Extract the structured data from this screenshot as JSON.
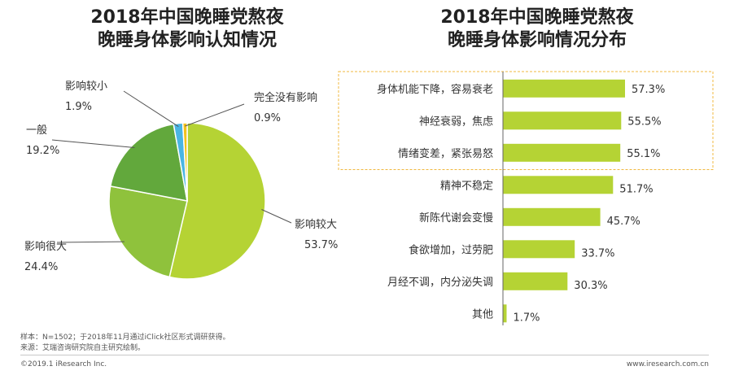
{
  "left_title": {
    "line1": "2018年中国晚睡党熬夜",
    "line2": "晚睡身体影响认知情况"
  },
  "right_title": {
    "line1": "2018年中国晚睡党熬夜",
    "line2": "晚睡身体影响情况分布"
  },
  "chart_data": [
    {
      "type": "pie",
      "title": "2018年中国晚睡党熬夜晚睡身体影响认知情况",
      "slices": [
        {
          "label": "影响较大",
          "value": 53.7,
          "display": "53.7%",
          "color": "#b5d334"
        },
        {
          "label": "影响很大",
          "value": 24.4,
          "display": "24.4%",
          "color": "#8fc23c"
        },
        {
          "label": "一般",
          "value": 19.2,
          "display": "19.2%",
          "color": "#62a83c"
        },
        {
          "label": "影响较小",
          "value": 1.9,
          "display": "1.9%",
          "color": "#4ab5e3"
        },
        {
          "label": "完全没有影响",
          "value": 0.9,
          "display": "0.9%",
          "color": "#f2c21d"
        }
      ]
    },
    {
      "type": "bar",
      "orientation": "horizontal",
      "title": "2018年中国晚睡党熬夜晚睡身体影响情况分布",
      "categories": [
        "身体机能下降，容易衰老",
        "神经衰弱，焦虑",
        "情绪变差，紧张易怒",
        "精神不稳定",
        "新陈代谢会变慢",
        "食欲增加，过劳肥",
        "月经不调，内分泌失调",
        "其他"
      ],
      "values": [
        57.3,
        55.5,
        55.1,
        51.7,
        45.7,
        33.7,
        30.3,
        1.7
      ],
      "value_labels": [
        "57.3%",
        "55.5%",
        "55.1%",
        "51.7%",
        "45.7%",
        "33.7%",
        "30.3%",
        "1.7%"
      ],
      "highlighted": [
        "身体机能下降，容易衰老",
        "神经衰弱，焦虑",
        "情绪变差，紧张易怒"
      ],
      "color": "#b5d334",
      "highlight_border_color": "#f0b840"
    }
  ],
  "footer": {
    "sample": "样本：N=1502；于2018年11月通过iClick社区形式调研获得。",
    "source": "来源：艾瑞咨询研究院自主研究绘制。",
    "copyright": "©2019.1 iResearch Inc.",
    "website": "www.iresearch.com.cn"
  }
}
